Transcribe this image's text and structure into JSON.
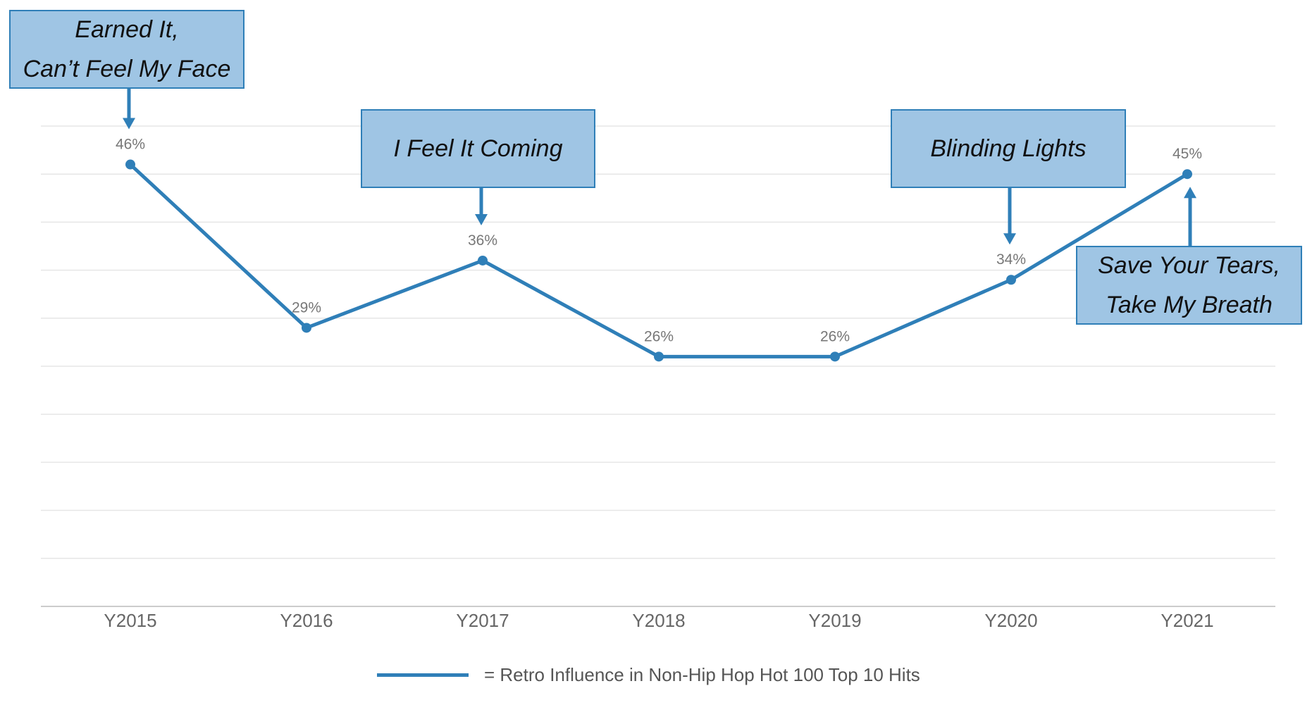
{
  "chart_data": {
    "type": "line",
    "categories": [
      "Y2015",
      "Y2016",
      "Y2017",
      "Y2018",
      "Y2019",
      "Y2020",
      "Y2021"
    ],
    "series": [
      {
        "name": "= Retro Influence in Non-Hip Hop Hot 100 Top 10 Hits",
        "values": [
          46,
          29,
          36,
          26,
          26,
          34,
          45
        ],
        "labels": [
          "46%",
          "29%",
          "36%",
          "26%",
          "26%",
          "34%",
          "45%"
        ],
        "color": "#2f7fb8"
      }
    ],
    "ylim": [
      0,
      50
    ],
    "grid": true,
    "legend": "bottom-center",
    "annotations": [
      {
        "category": "Y2015",
        "lines": [
          "Earned It,",
          "Can’t Feel My Face"
        ]
      },
      {
        "category": "Y2017",
        "lines": [
          "I Feel It Coming"
        ]
      },
      {
        "category": "Y2020",
        "lines": [
          "Blinding Lights"
        ]
      },
      {
        "category": "Y2021",
        "lines": [
          "Save Your Tears,",
          "Take My Breath"
        ]
      }
    ],
    "colors": {
      "line": "#2f7fb8",
      "callout_fill": "#9fc5e4",
      "callout_border": "#2f7fb8",
      "grid": "#e6e6e6",
      "label_text": "#777777"
    }
  }
}
